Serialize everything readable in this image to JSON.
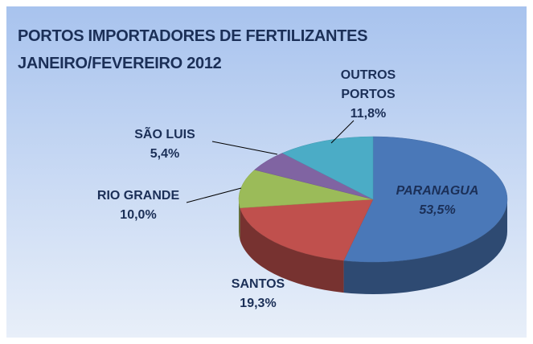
{
  "chart_data": {
    "type": "pie",
    "title": [
      "PORTOS IMPORTADORES DE FERTILIZANTES",
      "JANEIRO/FEVEREIRO 2012"
    ],
    "categories": [
      "PARANAGUA",
      "SANTOS",
      "RIO GRANDE",
      "SÃO LUIS",
      "OUTROS PORTOS"
    ],
    "values": [
      53.5,
      19.3,
      10.0,
      5.4,
      11.8
    ],
    "value_labels": [
      "53,5%",
      "19,3%",
      "10,0%",
      "5,4%",
      "11,8%"
    ],
    "colors": [
      "#4a78b8",
      "#c0504d",
      "#9bbb59",
      "#8064a2",
      "#4bacc6"
    ]
  }
}
